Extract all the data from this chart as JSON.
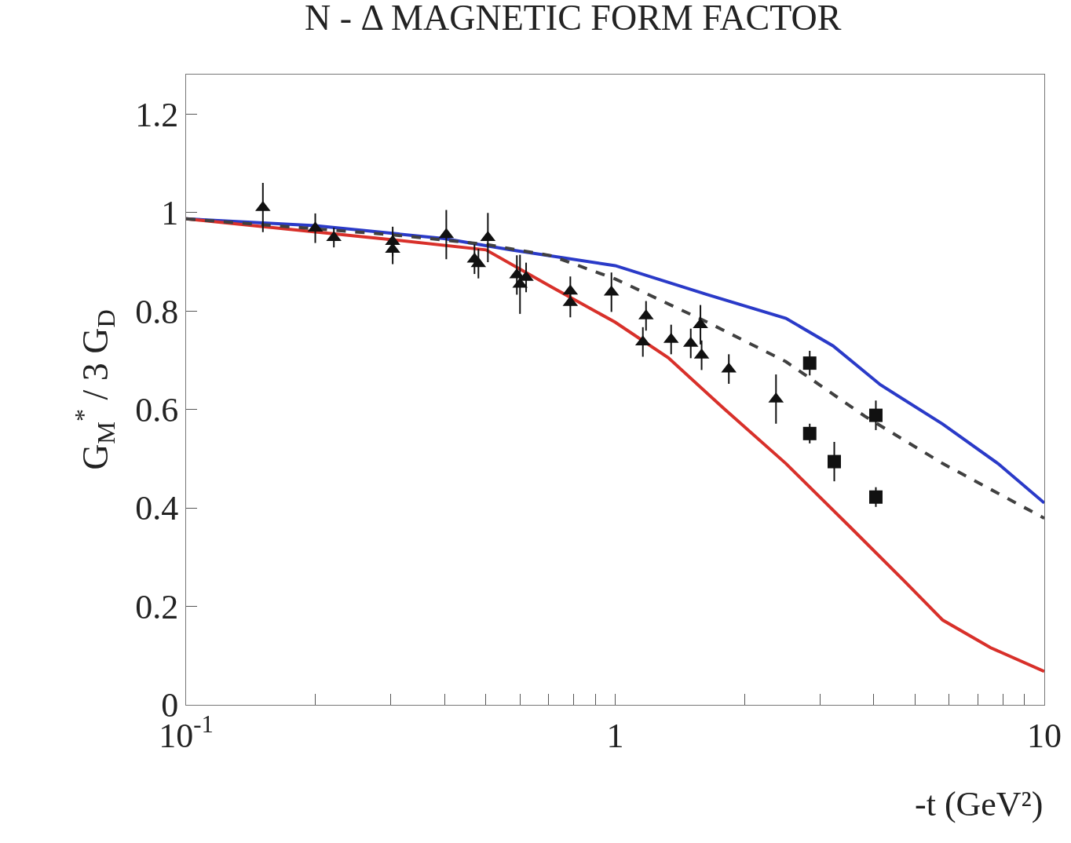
{
  "chart_data": {
    "type": "scatter",
    "title": "N - Δ MAGNETIC FORM FACTOR",
    "xlabel": "-t (GeV²)",
    "ylabel": "G$_{M}$$^{*}$ / 3 G$_{D}$",
    "log": "x",
    "grid": false,
    "xlim": [
      0.1,
      10
    ],
    "xticks": [
      {
        "value": 0.1,
        "label": "10$^{-1}$"
      },
      {
        "value": 0.2,
        "label": null
      },
      {
        "value": 0.3,
        "label": null
      },
      {
        "value": 0.4,
        "label": null
      },
      {
        "value": 0.5,
        "label": null
      },
      {
        "value": 0.6,
        "label": null
      },
      {
        "value": 0.7,
        "label": null
      },
      {
        "value": 0.8,
        "label": null
      },
      {
        "value": 0.9,
        "label": null
      },
      1,
      {
        "value": 2,
        "label": null
      },
      {
        "value": 3,
        "label": null
      },
      {
        "value": 4,
        "label": null
      },
      {
        "value": 5,
        "label": null
      },
      {
        "value": 6,
        "label": null
      },
      {
        "value": 7,
        "label": null
      },
      {
        "value": 8,
        "label": null
      },
      {
        "value": 9,
        "label": null
      },
      10
    ],
    "ylim": [
      0,
      1.28
    ],
    "yticks": [
      0,
      0.2,
      0.4,
      0.6,
      0.8,
      1,
      1.2
    ],
    "series": [
      {
        "type": "line",
        "color": "#2a3ac8",
        "line_style": "solid",
        "marker": "none",
        "x": [
          0.1,
          0.2,
          0.4,
          0.57,
          1,
          1.64,
          2.5,
          3.22,
          4.15,
          5.8,
          7.8,
          10
        ],
        "values": [
          0.987,
          0.973,
          0.947,
          0.924,
          0.892,
          0.833,
          0.785,
          0.729,
          0.65,
          0.57,
          0.49,
          0.41
        ]
      },
      {
        "type": "line",
        "color": "#d8302a",
        "line_style": "solid",
        "marker": "none",
        "x": [
          0.1,
          0.3,
          0.5,
          0.71,
          1,
          1.33,
          1.79,
          2.5,
          3.51,
          4.71,
          5.8,
          7.5,
          10
        ],
        "values": [
          0.987,
          0.945,
          0.924,
          0.849,
          0.777,
          0.705,
          0.602,
          0.49,
          0.363,
          0.252,
          0.172,
          0.116,
          0.068
        ]
      },
      {
        "type": "line",
        "color": "#404040",
        "line_style": "dashed",
        "marker": "none",
        "x": [
          0.1,
          0.3,
          0.5,
          0.71,
          1,
          1.64,
          2.5,
          3.82,
          5.8,
          10
        ],
        "values": [
          0.987,
          0.955,
          0.935,
          0.912,
          0.865,
          0.777,
          0.697,
          0.586,
          0.49,
          0.379
        ]
      },
      {
        "color": "#111111",
        "marker": "triangle",
        "x": [
          0.151,
          0.2,
          0.221,
          0.303,
          0.303,
          0.404,
          0.47,
          0.48,
          0.505,
          0.59,
          0.6,
          0.62,
          0.786,
          0.786,
          0.98,
          1.16,
          1.18,
          1.35,
          1.5,
          1.58,
          1.59,
          1.84,
          2.37
        ],
        "values": [
          1.01,
          0.968,
          0.949,
          0.941,
          0.925,
          0.955,
          0.905,
          0.896,
          0.949,
          0.873,
          0.854,
          0.868,
          0.84,
          0.817,
          0.838,
          0.737,
          0.79,
          0.742,
          0.734,
          0.772,
          0.71,
          0.682,
          0.621
        ],
        "errors": [
          0.05,
          0.03,
          0.02,
          0.03,
          0.03,
          0.05,
          0.03,
          0.03,
          0.05,
          0.04,
          0.06,
          0.03,
          0.03,
          0.03,
          0.04,
          0.03,
          0.03,
          0.03,
          0.03,
          0.04,
          0.03,
          0.03,
          0.05
        ]
      },
      {
        "color": "#111111",
        "marker": "square",
        "x": [
          2.84,
          2.84,
          3.24,
          4.05,
          4.05
        ],
        "values": [
          0.694,
          0.551,
          0.494,
          0.588,
          0.422
        ],
        "errors": [
          0.025,
          0.02,
          0.04,
          0.03,
          0.02
        ]
      }
    ]
  }
}
